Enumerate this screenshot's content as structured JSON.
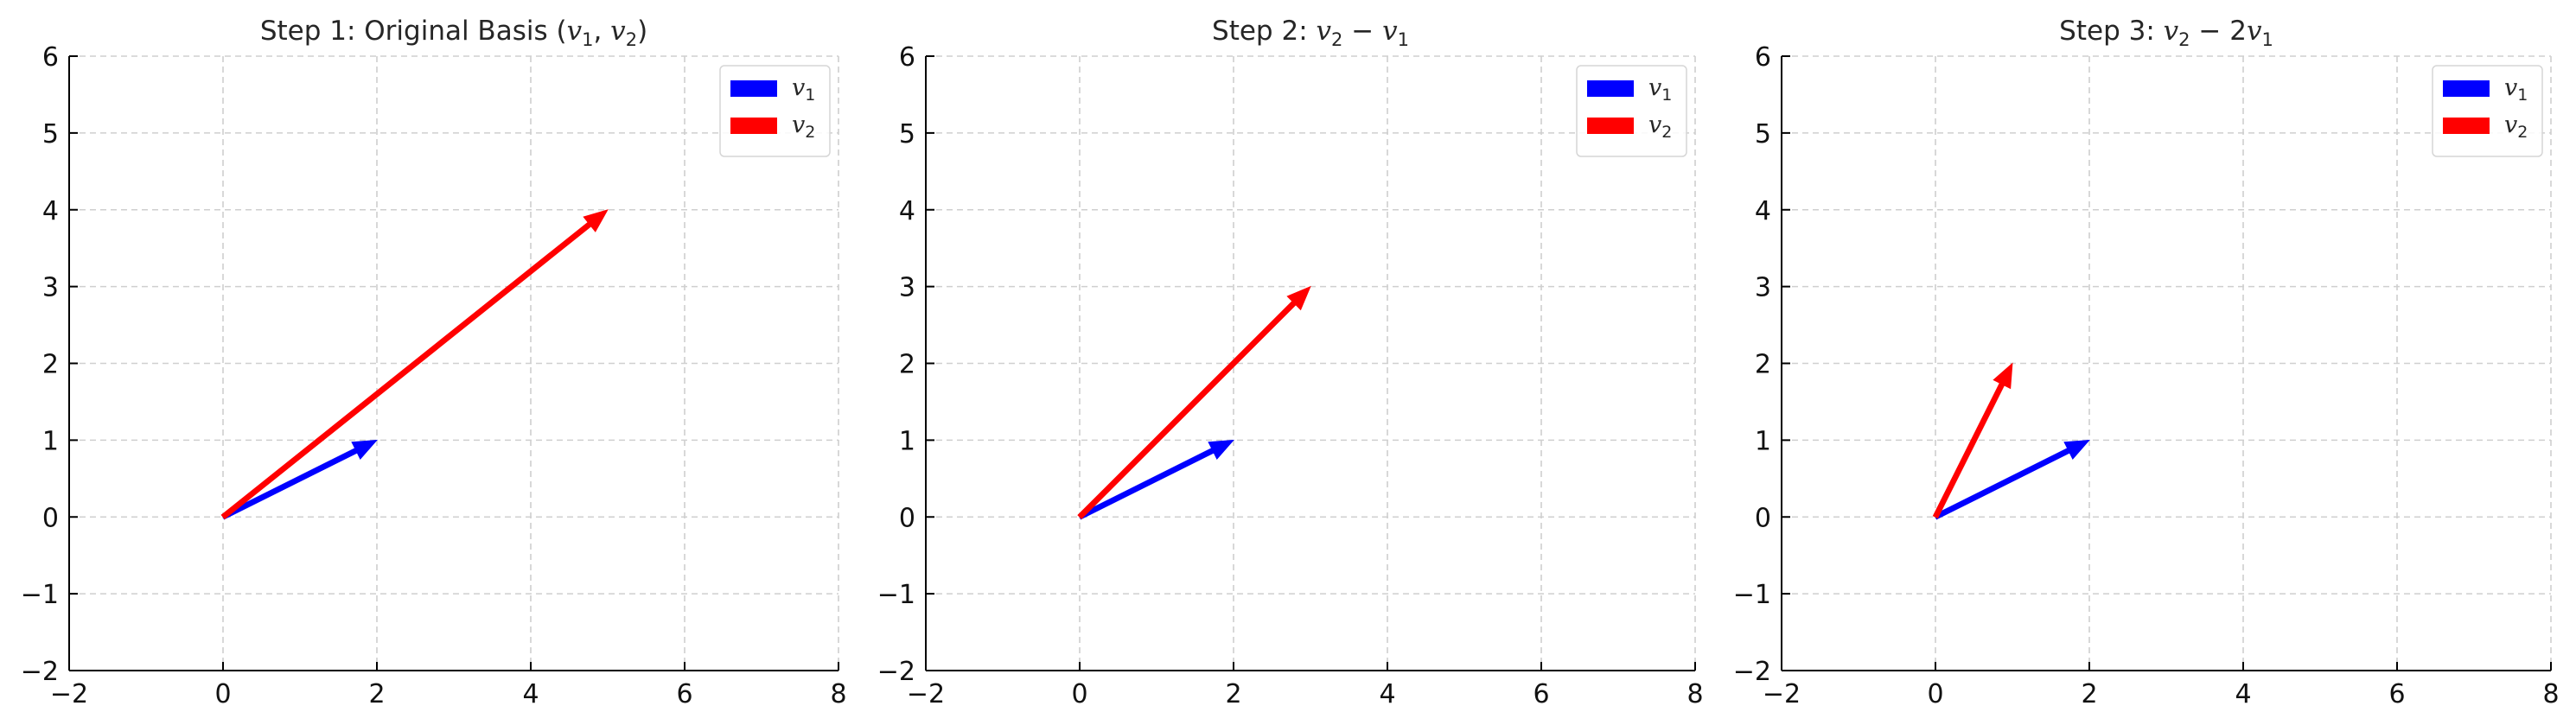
{
  "chart_data": [
    {
      "type": "vector",
      "title": "Step 1: Original Basis $(v_1, v_2)$",
      "title_parts": [
        {
          "text": "Step 1: Original Basis ("
        },
        {
          "text": "v",
          "italic": true
        },
        {
          "text": "1",
          "sub": true
        },
        {
          "text": ", "
        },
        {
          "text": "v",
          "italic": true
        },
        {
          "text": "2",
          "sub": true
        },
        {
          "text": ")"
        }
      ],
      "xlim": [
        -2,
        8
      ],
      "ylim": [
        -2,
        6
      ],
      "xticks": [
        -2,
        0,
        2,
        4,
        6,
        8
      ],
      "yticks": [
        -2,
        -1,
        0,
        1,
        2,
        3,
        4,
        5,
        6
      ],
      "xtick_labels": [
        "−2",
        "0",
        "2",
        "4",
        "6",
        "8"
      ],
      "ytick_labels": [
        "−2",
        "−1",
        "0",
        "1",
        "2",
        "3",
        "4",
        "5",
        "6"
      ],
      "grid": true,
      "legend_position": "top-right",
      "series": [
        {
          "name": "$v_1$",
          "label_base": "v",
          "label_sub": "1",
          "color": "#0000ff",
          "origin": [
            0,
            0
          ],
          "vector": [
            2,
            1
          ]
        },
        {
          "name": "$v_2$",
          "label_base": "v",
          "label_sub": "2",
          "color": "#ff0000",
          "origin": [
            0,
            0
          ],
          "vector": [
            5,
            4
          ]
        }
      ]
    },
    {
      "type": "vector",
      "title": "Step 2: $v_2 - v_1$",
      "title_parts": [
        {
          "text": "Step 2: "
        },
        {
          "text": "v",
          "italic": true
        },
        {
          "text": "2",
          "sub": true
        },
        {
          "text": " − "
        },
        {
          "text": "v",
          "italic": true
        },
        {
          "text": "1",
          "sub": true
        }
      ],
      "xlim": [
        -2,
        8
      ],
      "ylim": [
        -2,
        6
      ],
      "xticks": [
        -2,
        0,
        2,
        4,
        6,
        8
      ],
      "yticks": [
        -2,
        -1,
        0,
        1,
        2,
        3,
        4,
        5,
        6
      ],
      "xtick_labels": [
        "−2",
        "0",
        "2",
        "4",
        "6",
        "8"
      ],
      "ytick_labels": [
        "−2",
        "−1",
        "0",
        "1",
        "2",
        "3",
        "4",
        "5",
        "6"
      ],
      "grid": true,
      "legend_position": "top-right",
      "series": [
        {
          "name": "$v_1$",
          "label_base": "v",
          "label_sub": "1",
          "color": "#0000ff",
          "origin": [
            0,
            0
          ],
          "vector": [
            2,
            1
          ]
        },
        {
          "name": "$v_2$",
          "label_base": "v",
          "label_sub": "2",
          "color": "#ff0000",
          "origin": [
            0,
            0
          ],
          "vector": [
            3,
            3
          ]
        }
      ]
    },
    {
      "type": "vector",
      "title": "Step 3: $v_2 - 2v_1$",
      "title_parts": [
        {
          "text": "Step 3: "
        },
        {
          "text": "v",
          "italic": true
        },
        {
          "text": "2",
          "sub": true
        },
        {
          "text": " − 2"
        },
        {
          "text": "v",
          "italic": true
        },
        {
          "text": "1",
          "sub": true
        }
      ],
      "xlim": [
        -2,
        8
      ],
      "ylim": [
        -2,
        6
      ],
      "xticks": [
        -2,
        0,
        2,
        4,
        6,
        8
      ],
      "yticks": [
        -2,
        -1,
        0,
        1,
        2,
        3,
        4,
        5,
        6
      ],
      "xtick_labels": [
        "−2",
        "0",
        "2",
        "4",
        "6",
        "8"
      ],
      "ytick_labels": [
        "−2",
        "−1",
        "0",
        "1",
        "2",
        "3",
        "4",
        "5",
        "6"
      ],
      "grid": true,
      "legend_position": "top-right",
      "series": [
        {
          "name": "$v_1$",
          "label_base": "v",
          "label_sub": "1",
          "color": "#0000ff",
          "origin": [
            0,
            0
          ],
          "vector": [
            2,
            1
          ]
        },
        {
          "name": "$v_2$",
          "label_base": "v",
          "label_sub": "2",
          "color": "#ff0000",
          "origin": [
            0,
            0
          ],
          "vector": [
            1,
            2
          ]
        }
      ]
    }
  ]
}
